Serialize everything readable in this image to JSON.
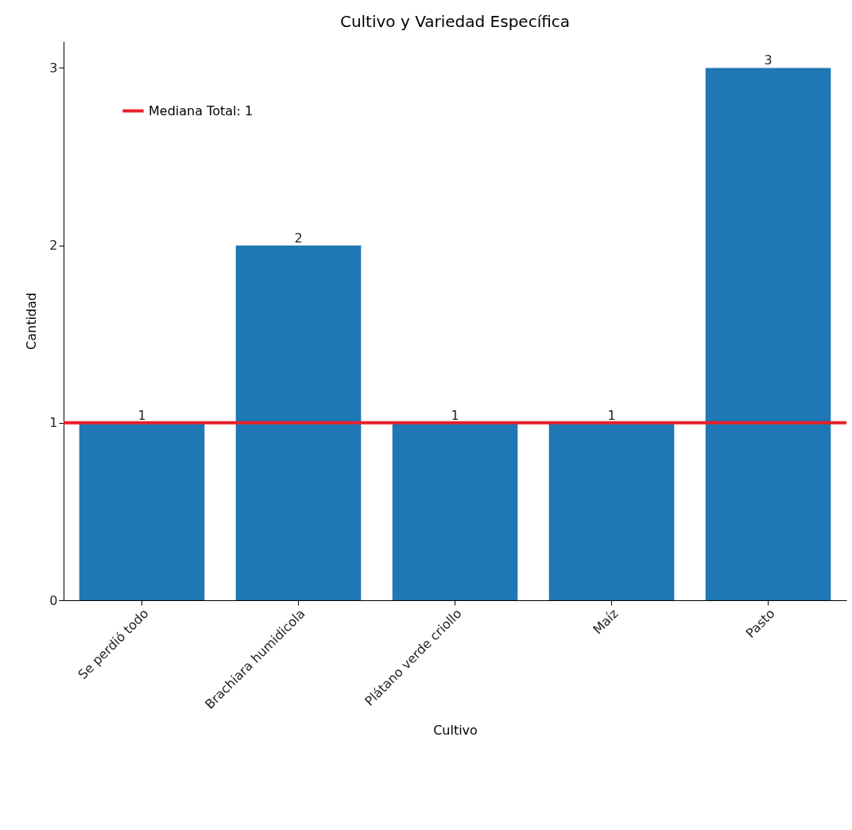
{
  "chart_data": {
    "type": "bar",
    "title": "Cultivo y Variedad Específica",
    "xlabel": "Cultivo",
    "ylabel": "Cantidad",
    "categories": [
      "Se perdió todo",
      "Brachiara humidicola",
      "Plátano verde criollo",
      "Maíz",
      "Pasto"
    ],
    "values": [
      1,
      2,
      1,
      1,
      3
    ],
    "color": "#1f77b4",
    "ylim": [
      0,
      3.15
    ],
    "yticks": [
      0,
      1,
      2,
      3
    ],
    "grid": false,
    "data_labels": true,
    "legend": "top left",
    "ref_lines": [
      {
        "axis": "y",
        "value": 1,
        "label": "Mediana Total: 1",
        "color": "#e8202a",
        "line_style": "solid"
      }
    ]
  }
}
